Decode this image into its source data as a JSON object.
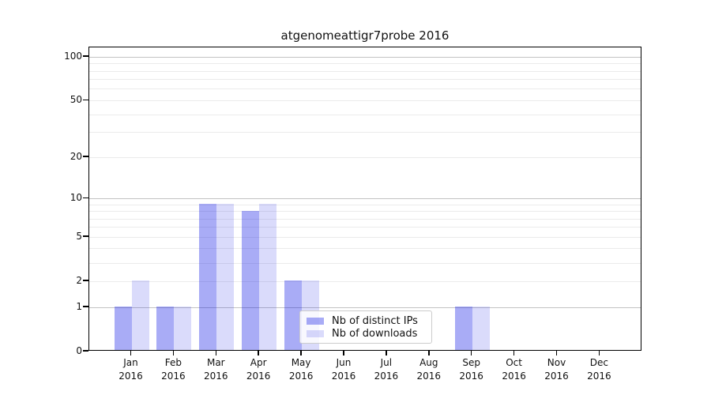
{
  "title": "atgenomeattigr7probe 2016",
  "colors": {
    "background": "#ffffff",
    "spine": "#000000",
    "text": "#111111",
    "bar_distinct_ips_hex": "#a9abf8",
    "bar_downloads_hex": "#dadcfb",
    "bar_distinct_ips_rgba": "rgba(10,16,228,0.35)",
    "bar_downloads_rgba": "rgba(10,16,228,0.15)",
    "grid_major": "#c3c3c3",
    "grid_minor": "#ebebeb"
  },
  "chart_data": {
    "type": "bar",
    "title": "atgenomeattigr7probe 2016",
    "categories": [
      "Jan",
      "Feb",
      "Mar",
      "Apr",
      "May",
      "Jun",
      "Jul",
      "Aug",
      "Sep",
      "Oct",
      "Nov",
      "Dec"
    ],
    "category_year": "2016",
    "series": [
      {
        "name": "Nb of distinct IPs",
        "values": [
          1,
          1,
          9,
          8,
          2,
          0,
          0,
          0,
          1,
          0,
          0,
          0
        ],
        "color_hex": "#a9abf8",
        "color_rgba": "rgba(10,16,228,0.35)"
      },
      {
        "name": "Nb of downloads",
        "values": [
          2,
          1,
          9,
          9,
          2,
          0,
          0,
          0,
          1,
          0,
          0,
          0
        ],
        "color_hex": "#dadcfb",
        "color_rgba": "rgba(10,16,228,0.15)"
      }
    ],
    "yscale": "log10(value+1)",
    "ylim": [
      0,
      115
    ],
    "yticks": [
      0,
      1,
      2,
      5,
      10,
      20,
      50,
      100
    ],
    "grid": {
      "major_lines": [
        1,
        10,
        100
      ],
      "minor_lines": [
        2,
        3,
        4,
        5,
        6,
        7,
        8,
        9,
        20,
        30,
        40,
        50,
        60,
        70,
        80,
        90
      ]
    },
    "legend": {
      "entries": [
        "Nb of distinct IPs",
        "Nb of downloads"
      ],
      "position": "lower center, overlapping plot area"
    },
    "xlabel": "",
    "ylabel": ""
  }
}
